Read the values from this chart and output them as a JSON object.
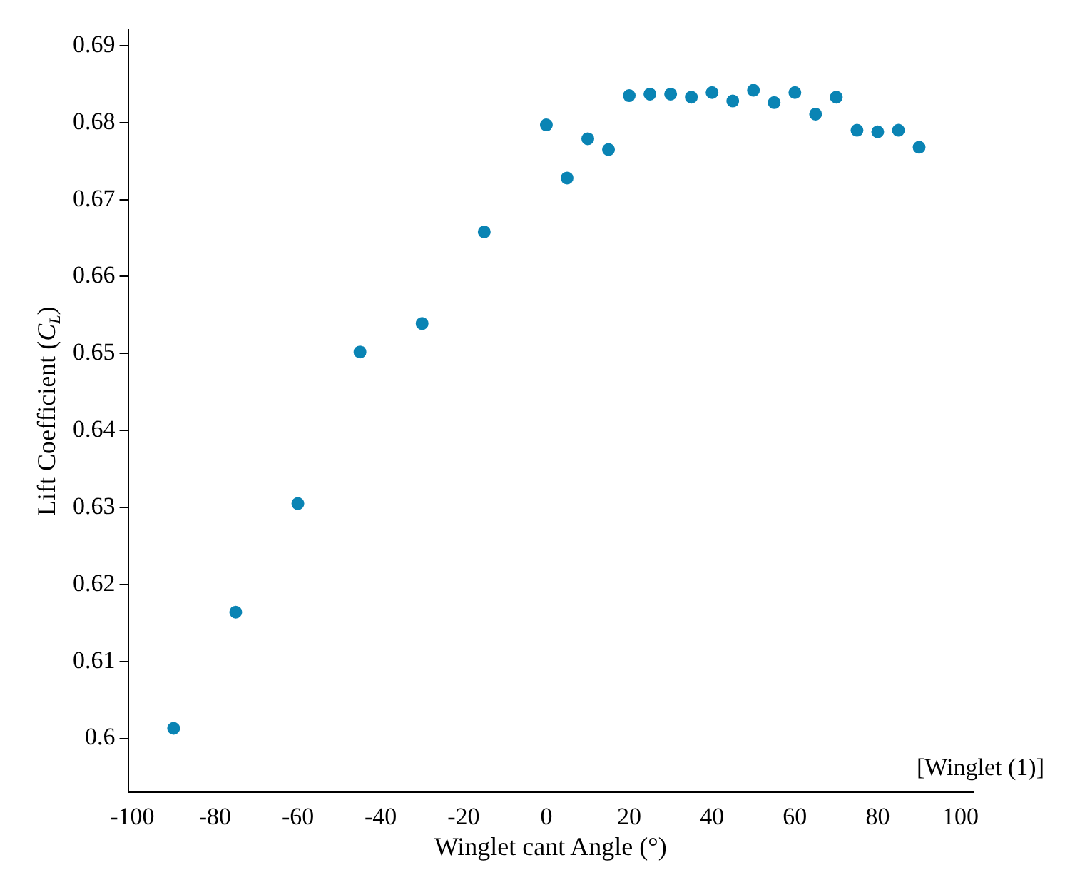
{
  "chart_data": {
    "type": "scatter",
    "xlabel": "Winglet cant Angle (°)",
    "ylabel": "Lift Coefficient (C$_{L}$)",
    "x": [
      -90,
      -75,
      -60,
      -45,
      -30,
      -15,
      0,
      5,
      10,
      15,
      20,
      25,
      30,
      35,
      40,
      45,
      50,
      55,
      60,
      65,
      70,
      75,
      80,
      85,
      90
    ],
    "series": [
      {
        "color": "#0a84b4",
        "values": [
          0.6013,
          0.6164,
          0.6305,
          0.6502,
          0.6539,
          0.6658,
          0.6797,
          0.6728,
          0.6779,
          0.6765,
          0.6835,
          0.6837,
          0.6837,
          0.6833,
          0.6839,
          0.6828,
          0.6842,
          0.6826,
          0.6839,
          0.6811,
          0.6833,
          0.679,
          0.6788,
          0.679,
          0.6768
        ]
      }
    ],
    "annotations": [
      "[Winglet (1)]"
    ],
    "xlim": [
      -101,
      103
    ],
    "xticks": [
      -100,
      -80,
      -60,
      -40,
      -20,
      0,
      20,
      40,
      60,
      80,
      100
    ],
    "ylim": [
      0.593,
      0.692
    ],
    "yticks": [
      0.6,
      0.61,
      0.62,
      0.63,
      0.64,
      0.65,
      0.66,
      0.67,
      0.68,
      0.69
    ],
    "grid": false,
    "legend": false,
    "marker": "circle"
  }
}
